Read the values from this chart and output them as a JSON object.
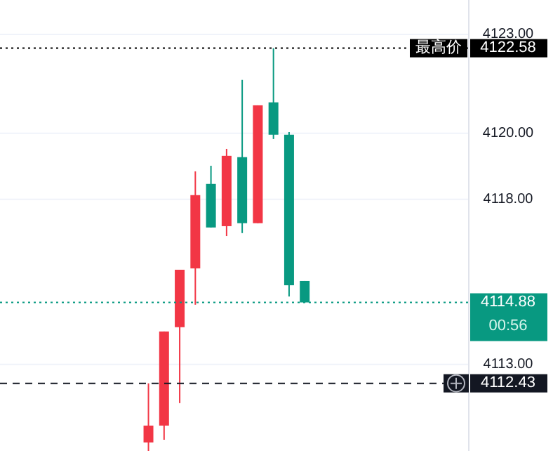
{
  "chart_data": {
    "type": "candlestick",
    "categories": [
      null,
      null,
      null,
      null,
      null,
      null,
      null,
      null,
      null,
      null,
      null,
      null,
      null,
      null,
      null,
      null,
      null,
      null,
      null,
      null,
      null,
      null,
      null,
      null,
      null,
      null,
      null,
      null,
      null,
      null
    ],
    "ohlc": [
      null,
      null,
      null,
      null,
      null,
      null,
      null,
      null,
      null,
      [
        4110.64,
        4112.43,
        4110.38,
        4111.15
      ],
      [
        4111.15,
        4114.0,
        4110.72,
        4114.0
      ],
      [
        4114.13,
        4115.87,
        4111.83,
        4115.87
      ],
      [
        4115.91,
        4118.85,
        4114.81,
        4118.13
      ],
      [
        4118.47,
        4119.02,
        4117.15,
        4117.15
      ],
      [
        4117.19,
        4119.53,
        4116.89,
        4119.32
      ],
      [
        4119.28,
        4121.62,
        4116.98,
        4117.28
      ],
      [
        4117.28,
        4120.85,
        4117.28,
        4120.85
      ],
      [
        4120.94,
        4122.58,
        4119.83,
        4119.96
      ],
      [
        4119.96,
        4120.04,
        4115.06,
        4115.4
      ],
      [
        4115.53,
        4115.53,
        4114.88,
        4114.88
      ],
      null,
      null,
      null,
      null,
      null,
      null,
      null,
      null,
      null,
      null
    ],
    "colors": [
      null,
      null,
      null,
      null,
      null,
      null,
      null,
      null,
      null,
      "#f23645",
      "#f23645",
      "#f23645",
      "#f23645",
      "#089981",
      "#f23645",
      "#089981",
      "#f23645",
      "#089981",
      "#089981",
      "#089981",
      null,
      null,
      null,
      null,
      null,
      null,
      null,
      null,
      null,
      null
    ],
    "ylim": [
      4110.38,
      4124.04
    ],
    "yticks": [
      {
        "value": 4113,
        "label": "4113.00"
      },
      {
        "value": 4118,
        "label": "4118.00"
      },
      {
        "value": 4120,
        "label": "4120.00"
      },
      {
        "value": 4123,
        "label": "4123.00"
      }
    ],
    "grid": "y",
    "ref_lines": [
      {
        "axis": "y",
        "value": 4122.58,
        "label": "4122.58",
        "color": "#000000",
        "line_style": "dotted"
      },
      {
        "axis": "y",
        "value": 4114.88,
        "label": "4114.88",
        "color": "#089981",
        "line_style": "dotted"
      },
      {
        "axis": "y",
        "value": 4112.43,
        "label": "4112.43",
        "color": "#131722",
        "line_style": "dashed"
      }
    ],
    "annotations": [
      "最高价",
      "00:56"
    ]
  }
}
